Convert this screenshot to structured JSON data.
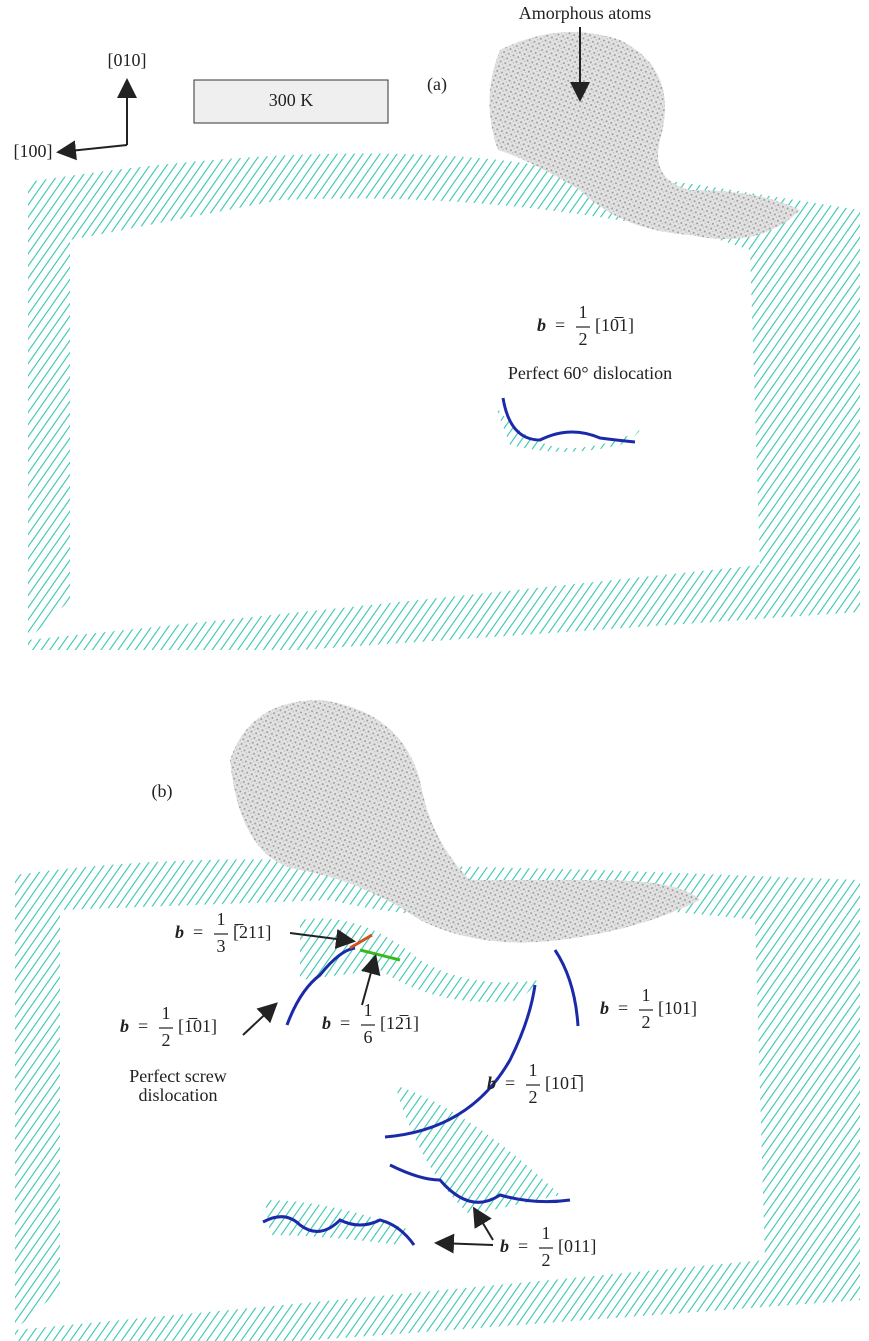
{
  "panel_a": {
    "axis_up": "[010]",
    "axis_left": "[100]",
    "temperature": "300 K",
    "label": "(a)",
    "amorphous_label": "Amorphous atoms",
    "burgers": {
      "symbol": "b",
      "equals": "=",
      "numerator": "1",
      "denominator": "2",
      "direction": "[10̅1]"
    },
    "dislocation_label": "Perfect 60° dislocation"
  },
  "panel_b": {
    "label": "(b)",
    "burgers": [
      {
        "symbol": "b",
        "equals": "=",
        "numerator": "1",
        "denominator": "3",
        "direction": "[̅211]"
      },
      {
        "symbol": "b",
        "equals": "=",
        "numerator": "1",
        "denominator": "6",
        "direction": "[12̅1]"
      },
      {
        "symbol": "b",
        "equals": "=",
        "numerator": "1",
        "denominator": "2",
        "direction": "[1̅01]"
      },
      {
        "symbol": "b",
        "equals": "=",
        "numerator": "1",
        "denominator": "2",
        "direction": "[101]"
      },
      {
        "symbol": "b",
        "equals": "=",
        "numerator": "1",
        "denominator": "2",
        "direction": "[101̅]"
      },
      {
        "symbol": "b",
        "equals": "=",
        "numerator": "1",
        "denominator": "2",
        "direction": "[011]"
      }
    ],
    "screw_label": [
      "Perfect screw",
      "dislocation"
    ]
  }
}
